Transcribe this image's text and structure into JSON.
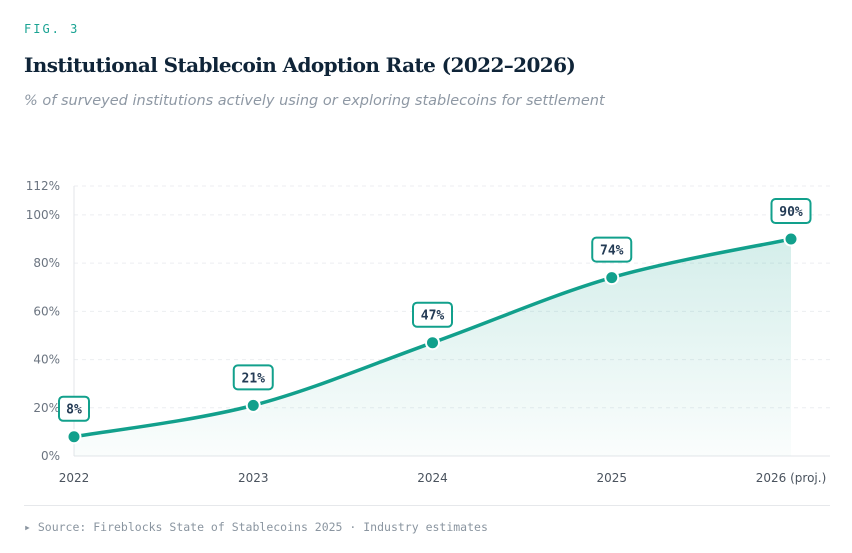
{
  "header": {
    "fig_label": "FIG. 3",
    "subtitle": "% of surveyed institutions actively using or exploring stablecoins for settlement"
  },
  "chart_data": {
    "type": "area",
    "title": "Institutional Stablecoin Adoption Rate (2022–2026)",
    "xlabel": "",
    "ylabel": "",
    "categories": [
      "2022",
      "2023",
      "2024",
      "2025",
      "2026 (proj.)"
    ],
    "series": [
      {
        "name": "Adoption rate",
        "values": [
          8,
          21,
          47,
          74,
          90
        ]
      }
    ],
    "data_labels": [
      "8%",
      "21%",
      "47%",
      "74%",
      "90%"
    ],
    "ylim": [
      0,
      112
    ],
    "yticks": [
      0,
      20,
      40,
      60,
      80,
      100,
      112
    ],
    "ytick_labels": [
      "0%",
      "20%",
      "40%",
      "60%",
      "80%",
      "100%",
      "112%"
    ],
    "grid": true,
    "colors": {
      "line": "#12a08c",
      "label_text": "#243b55"
    }
  },
  "footer": {
    "source": "▸ Source: Fireblocks State of Stablecoins 2025 · Industry estimates"
  }
}
